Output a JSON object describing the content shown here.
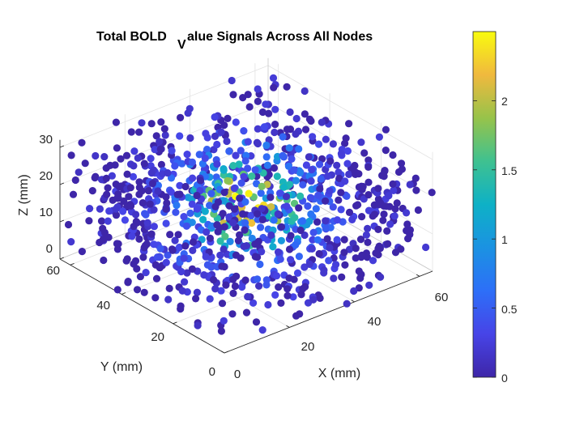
{
  "chart_data": {
    "type": "scatter",
    "projection": "3d",
    "title_main": "Total BOLD",
    "title_sub": "V",
    "title_rest": "alue Signals Across All Nodes",
    "xlabel": "X (mm)",
    "ylabel": "Y (mm)",
    "zlabel": "Z (mm)",
    "xlim": [
      0,
      64
    ],
    "ylim": [
      0,
      64
    ],
    "zlim": [
      0,
      32
    ],
    "x_ticks": [
      "0",
      "20",
      "40",
      "60"
    ],
    "y_ticks": [
      "0",
      "20",
      "40",
      "60"
    ],
    "z_ticks": [
      "0",
      "10",
      "20",
      "30"
    ],
    "colorbar": {
      "colormap": "parula",
      "clim": [
        0,
        2.5
      ],
      "ticks": [
        "0",
        "0.5",
        "1",
        "1.5",
        "2"
      ],
      "tick_values": [
        0,
        0.5,
        1,
        1.5,
        2
      ]
    },
    "grid": true,
    "n_points": 1000,
    "value_distribution": "peak of about 2.4 near the volume centre (32, 32, 16), falling to 0 toward the edges",
    "marker_color_low": "#3e26a8",
    "marker_color_high": "#f9fb0e"
  }
}
